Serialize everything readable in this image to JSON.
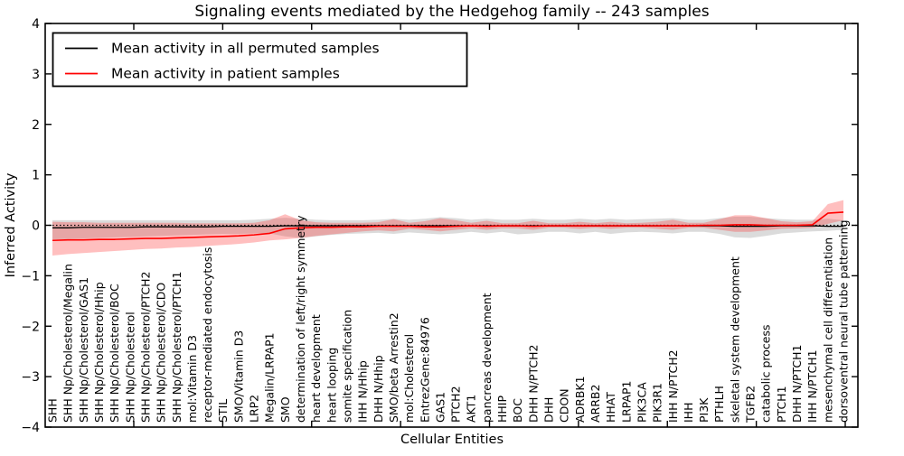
{
  "figure": {
    "legend": {
      "entries": [
        {
          "label": "Mean activity in all permuted samples",
          "color": "#000000"
        },
        {
          "label": "Mean activity in patient samples",
          "color": "#ff0000"
        }
      ]
    }
  },
  "chart_data": {
    "type": "line",
    "title": "Signaling events mediated by the Hedgehog family -- 243 samples",
    "xlabel": "Cellular Entities",
    "ylabel": "Inferred Activity",
    "ylim": [
      -4,
      4
    ],
    "yticks": [
      4,
      3,
      2,
      1,
      0,
      -1,
      -2,
      -3,
      -4
    ],
    "grid": false,
    "legend_position": "upper left",
    "zero_line": {
      "y": 0,
      "style": "dotted",
      "color": "#000000"
    },
    "categories": [
      "SHH",
      "SHH Np/Cholesterol/Megalin",
      "SHH Np/Cholesterol/GAS1",
      "SHH Np/Cholesterol/Hhip",
      "SHH Np/Cholesterol/BOC",
      "SHH Np/Cholesterol",
      "SHH Np/Cholesterol/PTCH2",
      "SHH Np/Cholesterol/CDO",
      "SHH Np/Cholesterol/PTCH1",
      "mol:Vitamin D3",
      "receptor-mediated endocytosis",
      "STIL",
      "SMO/Vitamin D3",
      "LRP2",
      "Megalin/LRPAP1",
      "SMO",
      "determination of left/right symmetry",
      "heart development",
      "heart looping",
      "somite specification",
      "IHH N/Hhip",
      "DHH N/Hhip",
      "SMO/beta Arrestin2",
      "mol:Cholesterol",
      "EntrezGene:84976",
      "GAS1",
      "PTCH2",
      "AKT1",
      "pancreas development",
      "HHIP",
      "BOC",
      "DHH N/PTCH2",
      "DHH",
      "CDON",
      "ADRBK1",
      "ARRB2",
      "HHAT",
      "LRPAP1",
      "PIK3CA",
      "PIK3R1",
      "IHH N/PTCH2",
      "IHH",
      "PI3K",
      "PTHLH",
      "skeletal system development",
      "TGFB2",
      "catabolic process",
      "PTCH1",
      "DHH N/PTCH1",
      "IHH N/PTCH1",
      "mesenchymal cell differentiation",
      "dorsoventral neural tube patterning"
    ],
    "series": [
      {
        "name": "Mean activity in all permuted samples",
        "color": "#000000",
        "band_color": "#999999",
        "band_opacity": 0.35,
        "values": [
          -0.05,
          -0.05,
          -0.04,
          -0.04,
          -0.04,
          -0.04,
          -0.03,
          -0.03,
          -0.03,
          -0.03,
          -0.03,
          -0.02,
          -0.02,
          -0.02,
          -0.02,
          -0.01,
          -0.01,
          -0.01,
          -0.01,
          -0.01,
          -0.01,
          -0.01,
          -0.01,
          -0.01,
          -0.01,
          -0.01,
          -0.01,
          -0.01,
          -0.01,
          -0.01,
          -0.01,
          -0.01,
          -0.01,
          -0.01,
          -0.01,
          -0.01,
          -0.01,
          -0.01,
          -0.01,
          -0.01,
          -0.01,
          -0.01,
          -0.01,
          -0.01,
          -0.02,
          -0.02,
          -0.02,
          -0.01,
          -0.01,
          -0.01,
          -0.02,
          -0.02
        ],
        "band_upper": [
          0.1,
          0.1,
          0.1,
          0.1,
          0.1,
          0.1,
          0.1,
          0.1,
          0.1,
          0.1,
          0.1,
          0.1,
          0.1,
          0.11,
          0.13,
          0.15,
          0.13,
          0.11,
          0.1,
          0.1,
          0.1,
          0.11,
          0.13,
          0.11,
          0.13,
          0.16,
          0.14,
          0.11,
          0.13,
          0.11,
          0.11,
          0.13,
          0.11,
          0.11,
          0.13,
          0.11,
          0.13,
          0.11,
          0.12,
          0.13,
          0.14,
          0.11,
          0.11,
          0.14,
          0.17,
          0.17,
          0.14,
          0.12,
          0.11,
          0.11,
          0.13,
          0.1
        ],
        "band_lower": [
          -0.28,
          -0.27,
          -0.26,
          -0.25,
          -0.24,
          -0.23,
          -0.22,
          -0.21,
          -0.2,
          -0.19,
          -0.18,
          -0.17,
          -0.17,
          -0.16,
          -0.16,
          -0.22,
          -0.25,
          -0.22,
          -0.19,
          -0.17,
          -0.16,
          -0.15,
          -0.17,
          -0.14,
          -0.16,
          -0.18,
          -0.16,
          -0.13,
          -0.16,
          -0.13,
          -0.18,
          -0.16,
          -0.13,
          -0.13,
          -0.16,
          -0.13,
          -0.17,
          -0.14,
          -0.13,
          -0.14,
          -0.16,
          -0.13,
          -0.13,
          -0.17,
          -0.24,
          -0.25,
          -0.21,
          -0.16,
          -0.14,
          -0.12,
          -0.11,
          -0.09
        ]
      },
      {
        "name": "Mean activity in patient samples",
        "color": "#ff0000",
        "band_color": "#ff2a2a",
        "band_opacity": 0.3,
        "values": [
          -0.3,
          -0.29,
          -0.29,
          -0.28,
          -0.28,
          -0.27,
          -0.26,
          -0.26,
          -0.25,
          -0.24,
          -0.23,
          -0.22,
          -0.21,
          -0.19,
          -0.16,
          -0.07,
          -0.05,
          -0.04,
          -0.04,
          -0.03,
          -0.03,
          -0.02,
          -0.02,
          -0.02,
          -0.03,
          -0.03,
          -0.02,
          -0.01,
          -0.02,
          -0.01,
          -0.01,
          -0.02,
          -0.01,
          -0.01,
          -0.01,
          -0.01,
          -0.01,
          -0.01,
          -0.01,
          -0.01,
          -0.01,
          -0.01,
          0.0,
          0.0,
          0.01,
          0.01,
          0.0,
          0.0,
          0.0,
          0.01,
          0.24,
          0.26
        ],
        "band_upper": [
          0.07,
          0.06,
          0.06,
          0.05,
          0.05,
          0.05,
          0.05,
          0.05,
          0.05,
          0.04,
          0.04,
          0.04,
          0.04,
          0.05,
          0.1,
          0.22,
          0.1,
          0.06,
          0.05,
          0.05,
          0.05,
          0.06,
          0.12,
          0.05,
          0.08,
          0.14,
          0.1,
          0.05,
          0.09,
          0.04,
          0.04,
          0.09,
          0.04,
          0.04,
          0.07,
          0.04,
          0.07,
          0.04,
          0.05,
          0.07,
          0.11,
          0.05,
          0.05,
          0.12,
          0.2,
          0.2,
          0.14,
          0.08,
          0.06,
          0.08,
          0.42,
          0.5
        ],
        "band_lower": [
          -0.6,
          -0.57,
          -0.55,
          -0.53,
          -0.51,
          -0.49,
          -0.47,
          -0.46,
          -0.44,
          -0.43,
          -0.41,
          -0.39,
          -0.37,
          -0.34,
          -0.3,
          -0.28,
          -0.25,
          -0.21,
          -0.18,
          -0.15,
          -0.12,
          -0.1,
          -0.12,
          -0.07,
          -0.09,
          -0.12,
          -0.09,
          -0.06,
          -0.09,
          -0.06,
          -0.06,
          -0.09,
          -0.05,
          -0.05,
          -0.07,
          -0.05,
          -0.07,
          -0.05,
          -0.05,
          -0.07,
          -0.09,
          -0.05,
          -0.05,
          -0.09,
          -0.13,
          -0.13,
          -0.1,
          -0.07,
          -0.06,
          -0.05,
          0.03,
          0.1
        ]
      }
    ]
  }
}
